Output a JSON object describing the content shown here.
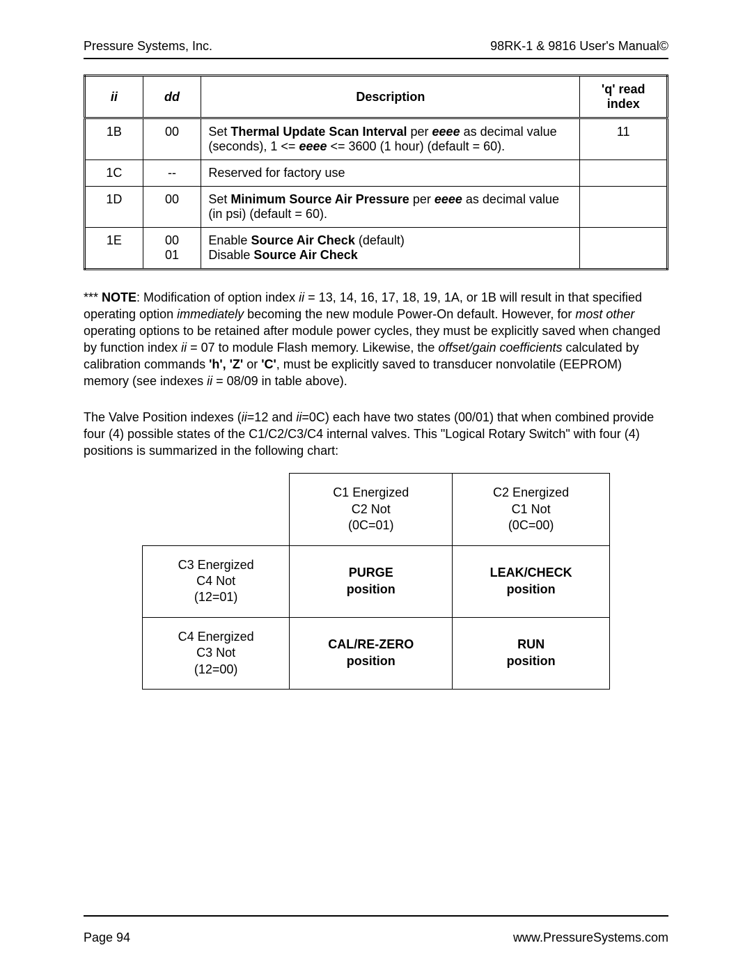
{
  "header": {
    "left": "Pressure Systems, Inc.",
    "right": "98RK-1 & 9816 User's Manual©"
  },
  "table1": {
    "headers": {
      "ii": "ii",
      "dd": "dd",
      "desc": "Description",
      "q": "'q' read index"
    },
    "rows": [
      {
        "ii": "1B",
        "dd": "00",
        "desc": [
          {
            "t": "Set "
          },
          {
            "t": "Thermal Update Scan Interval",
            "style": "b"
          },
          {
            "t": " per "
          },
          {
            "t": "eeee",
            "style": "bi"
          },
          {
            "t": " as decimal value (seconds), 1 <= "
          },
          {
            "t": "eeee",
            "style": "bi"
          },
          {
            "t": " <= 3600 (1 hour) (default = 60)."
          }
        ],
        "q": "11"
      },
      {
        "ii": "1C",
        "dd": "--",
        "desc": [
          {
            "t": "Reserved for factory use"
          }
        ],
        "q": ""
      },
      {
        "ii": "1D",
        "dd": "00",
        "desc": [
          {
            "t": "Set "
          },
          {
            "t": "Minimum Source Air Pressure",
            "style": "b"
          },
          {
            "t": " per "
          },
          {
            "t": "eeee",
            "style": "bi"
          },
          {
            "t": " as decimal value (in psi) (default = 60)."
          }
        ],
        "q": ""
      },
      {
        "ii": "1E",
        "dd": "00\n01",
        "desc": [
          {
            "t": "Enable "
          },
          {
            "t": "Source Air Check",
            "style": "b"
          },
          {
            "t": " (default)"
          },
          {
            "t": "\n"
          },
          {
            "t": "Disable "
          },
          {
            "t": "Source Air Check",
            "style": "b"
          }
        ],
        "q": ""
      }
    ]
  },
  "para1": [
    {
      "t": "*** "
    },
    {
      "t": "NOTE",
      "style": "b"
    },
    {
      "t": ": Modification of option index "
    },
    {
      "t": "ii",
      "style": "i"
    },
    {
      "t": " = 13, 14, 16, 17, 18, 19, 1A, or 1B will result in that specified operating option "
    },
    {
      "t": "immediately",
      "style": "i"
    },
    {
      "t": " becoming the new module Power-On default.  However, for "
    },
    {
      "t": "most other",
      "style": "i"
    },
    {
      "t": " operating options to be retained after module power cycles, they must be explicitly saved when changed by function index "
    },
    {
      "t": "ii",
      "style": "i"
    },
    {
      "t": " = 07 to module Flash memory.  Likewise, the "
    },
    {
      "t": "offset/gain coefficients",
      "style": "i"
    },
    {
      "t": " calculated by calibration commands "
    },
    {
      "t": "'h', 'Z'",
      "style": "b"
    },
    {
      "t": " or "
    },
    {
      "t": "'C'",
      "style": "b"
    },
    {
      "t": ", must be explicitly saved to transducer nonvolatile (EEPROM) memory  (see indexes "
    },
    {
      "t": "ii",
      "style": "i"
    },
    {
      "t": " = 08/09 in table above)."
    }
  ],
  "para2": [
    {
      "t": "The Valve Position indexes ("
    },
    {
      "t": "ii",
      "style": "i"
    },
    {
      "t": "=12 and "
    },
    {
      "t": "ii",
      "style": "i"
    },
    {
      "t": "=0C) each have two states (00/01) that when combined provide four (4) possible states of the C1/C2/C3/C4 internal valves.  This \"Logical Rotary Switch\" with four (4) positions is summarized in the following chart:"
    }
  ],
  "table2": {
    "colHeaders": [
      {
        "line1": "C1 Energized",
        "line2": "C2 Not",
        "line3": "(0C=01)"
      },
      {
        "line1": "C2 Energized",
        "line2": "C1 Not",
        "line3": "(0C=00)"
      }
    ],
    "rowHeaders": [
      {
        "line1": "C3 Energized",
        "line2": "C4 Not",
        "line3": "(12=01)"
      },
      {
        "line1": "C4 Energized",
        "line2": "C3 Not",
        "line3": "(12=00)"
      }
    ],
    "cells": [
      [
        {
          "name": "PURGE",
          "sub": "position"
        },
        {
          "name": "LEAK/CHECK",
          "sub": "position"
        }
      ],
      [
        {
          "name": "CAL/RE-ZERO",
          "sub": "position"
        },
        {
          "name": "RUN",
          "sub": "position"
        }
      ]
    ]
  },
  "footer": {
    "left": "Page 94",
    "right": "www.PressureSystems.com"
  }
}
